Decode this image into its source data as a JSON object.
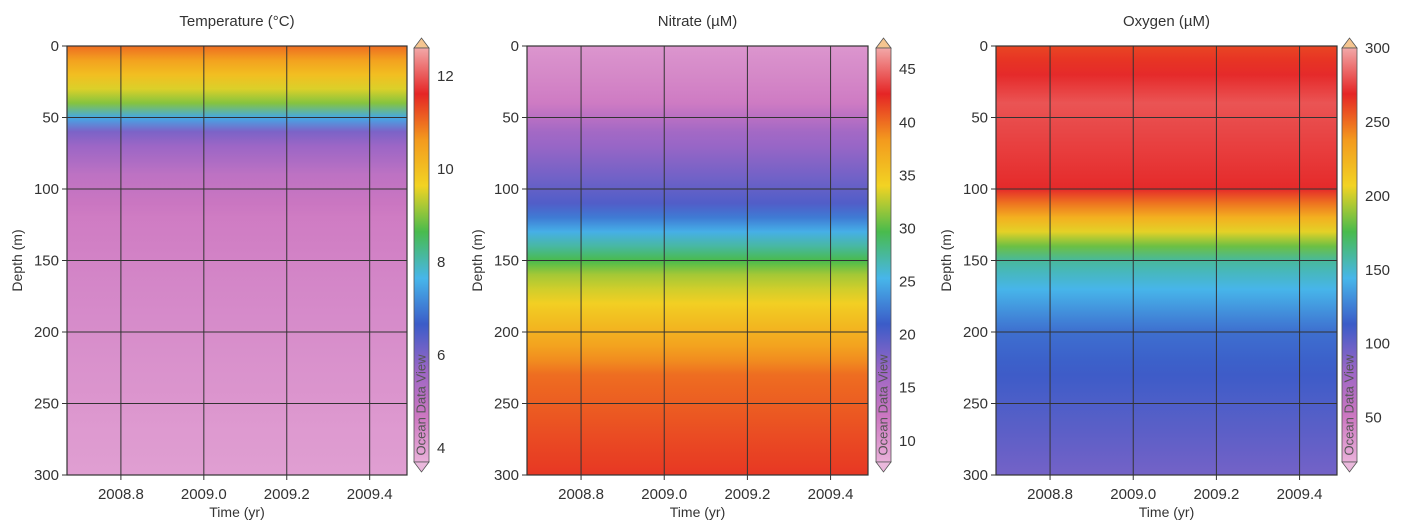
{
  "chart_data": [
    {
      "type": "heatmap",
      "title": "Temperature (°C)",
      "xlabel": "Time (yr)",
      "ylabel": "Depth (m)",
      "xlim": [
        2008.67,
        2009.49
      ],
      "ylim": [
        0,
        300
      ],
      "x_ticks": [
        "2008.8",
        "2009.0",
        "2009.2",
        "2009.4"
      ],
      "x_tick_values": [
        2008.8,
        2009.0,
        2009.2,
        2009.4
      ],
      "y_ticks": [
        "0",
        "50",
        "100",
        "150",
        "200",
        "250",
        "300"
      ],
      "y_tick_values": [
        0,
        50,
        100,
        150,
        200,
        250,
        300
      ],
      "colorbar": {
        "range": [
          3.7,
          12.6
        ],
        "ticks": [
          "4",
          "6",
          "8",
          "10",
          "12"
        ],
        "tick_values": [
          4,
          6,
          8,
          10,
          12
        ],
        "watermark": "Ocean Data View"
      },
      "grid": true,
      "profile": [
        {
          "depth": 0,
          "value": 11.0
        },
        {
          "depth": 40,
          "value": 9.0
        },
        {
          "depth": 60,
          "value": 6.0
        },
        {
          "depth": 90,
          "value": 5.0
        },
        {
          "depth": 120,
          "value": 4.6
        },
        {
          "depth": 200,
          "value": 4.3
        },
        {
          "depth": 300,
          "value": 4.0
        }
      ]
    },
    {
      "type": "heatmap",
      "title": "Nitrate (µM)",
      "xlabel": "Time (yr)",
      "ylabel": "Depth (m)",
      "xlim": [
        2008.67,
        2009.49
      ],
      "ylim": [
        0,
        300
      ],
      "x_ticks": [
        "2008.8",
        "2009.0",
        "2009.2",
        "2009.4"
      ],
      "x_tick_values": [
        2008.8,
        2009.0,
        2009.2,
        2009.4
      ],
      "y_ticks": [
        "0",
        "50",
        "100",
        "150",
        "200",
        "250",
        "300"
      ],
      "y_tick_values": [
        0,
        50,
        100,
        150,
        200,
        250,
        300
      ],
      "colorbar": {
        "range": [
          8,
          47
        ],
        "ticks": [
          "10",
          "15",
          "20",
          "25",
          "30",
          "35",
          "40",
          "45"
        ],
        "tick_values": [
          10,
          15,
          20,
          25,
          30,
          35,
          40,
          45
        ],
        "watermark": "Ocean Data View"
      },
      "grid": true,
      "profile": [
        {
          "depth": 0,
          "value": 10
        },
        {
          "depth": 40,
          "value": 12
        },
        {
          "depth": 60,
          "value": 16
        },
        {
          "depth": 110,
          "value": 20
        },
        {
          "depth": 130,
          "value": 25
        },
        {
          "depth": 160,
          "value": 32
        },
        {
          "depth": 230,
          "value": 40
        },
        {
          "depth": 300,
          "value": 42
        }
      ]
    },
    {
      "type": "heatmap",
      "title": "Oxygen (µM)",
      "xlabel": "Time (yr)",
      "ylabel": "Depth (m)",
      "xlim": [
        2008.67,
        2009.49
      ],
      "ylim": [
        0,
        300
      ],
      "x_ticks": [
        "2008.8",
        "2009.0",
        "2009.2",
        "2009.4"
      ],
      "x_tick_values": [
        2008.8,
        2009.0,
        2009.2,
        2009.4
      ],
      "y_ticks": [
        "0",
        "50",
        "100",
        "150",
        "200",
        "250",
        "300"
      ],
      "y_tick_values": [
        0,
        50,
        100,
        150,
        200,
        250,
        300
      ],
      "colorbar": {
        "range": [
          20,
          300
        ],
        "ticks": [
          "50",
          "100",
          "150",
          "200",
          "250",
          "300"
        ],
        "tick_values": [
          50,
          100,
          150,
          200,
          250,
          300
        ],
        "watermark": "Ocean Data View"
      },
      "grid": true,
      "profile": [
        {
          "depth": 0,
          "value": 260
        },
        {
          "depth": 40,
          "value": 280
        },
        {
          "depth": 100,
          "value": 270
        },
        {
          "depth": 125,
          "value": 215
        },
        {
          "depth": 150,
          "value": 160
        },
        {
          "depth": 200,
          "value": 120
        },
        {
          "depth": 300,
          "value": 95
        }
      ]
    }
  ],
  "colormap": [
    "#e9b0d9",
    "#cc77c1",
    "#9b66c6",
    "#3b5cc8",
    "#47b6ea",
    "#49bb4d",
    "#f2d323",
    "#f39a1e",
    "#e52525",
    "#f2a8a8"
  ]
}
